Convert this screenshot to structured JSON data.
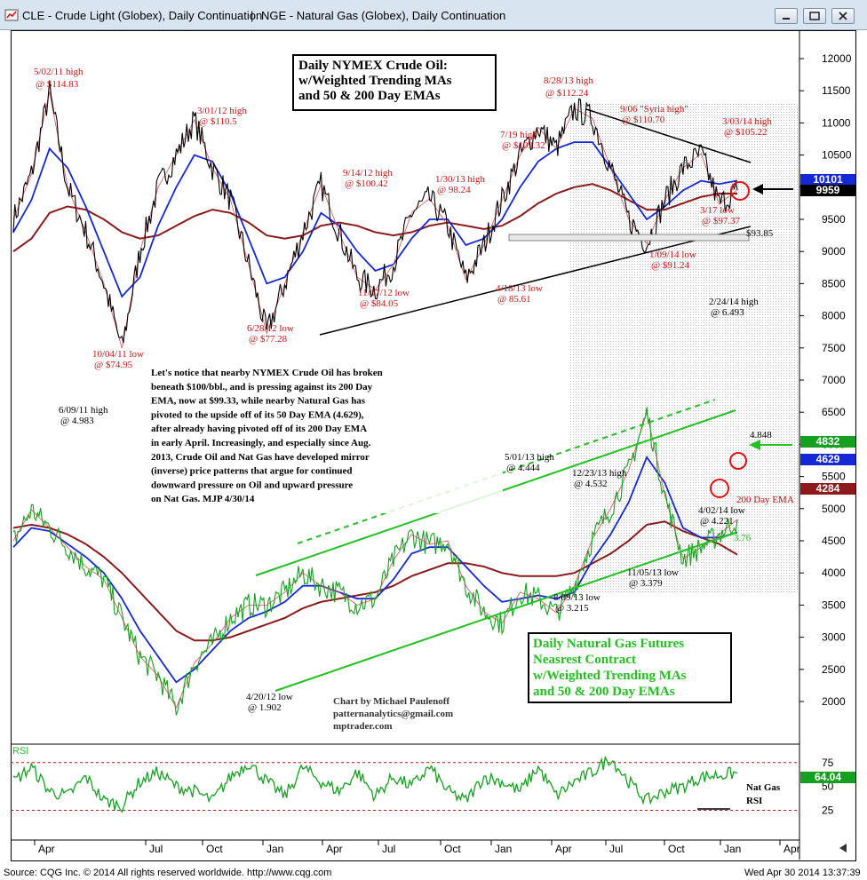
{
  "window": {
    "title_left": "CLE - Crude Light (Globex), Daily Continuation",
    "separator": "|",
    "title_right": "NGE - Natural Gas (Globex), Daily Continuation"
  },
  "status": {
    "copyright": "Source: CQG Inc. © 2014 All rights reserved worldwide.  http://www.cqg.com",
    "timestamp": "Wed Apr 30 2014 13:37:39"
  },
  "chart_data": [
    {
      "type": "line",
      "title": "Daily NYMEX Crude Oil: w/Weighted Trending MAs and 50 & 200 Day EMAs",
      "title_lines": [
        "Daily NYMEX Crude Oil:",
        "w/Weighted Trending MAs",
        "and 50 & 200 Day EMAs"
      ],
      "y_ticks": [
        "12000",
        "11500",
        "11000",
        "10500",
        "10000",
        "9500",
        "9000",
        "8500",
        "8000",
        "7500",
        "7000",
        "6500",
        "6000",
        "5500",
        "5000",
        "4500",
        "4000",
        "3500",
        "3000",
        "2500",
        "2000"
      ],
      "last_price_tags": [
        {
          "label": "10101",
          "color": "#1428d8"
        },
        {
          "label": "9959",
          "color": "#000000"
        }
      ],
      "level_label": "$93.85",
      "series": [
        {
          "name": "CLE",
          "color": "#000000",
          "values": [
            9500,
            10200,
            11483,
            10000,
            9300,
            8500,
            7495,
            9000,
            10000,
            10500,
            11050,
            10300,
            9800,
            8800,
            7728,
            8500,
            9300,
            10042,
            9300,
            8600,
            8405,
            8800,
            9600,
            9824,
            9400,
            8561,
            9100,
            9800,
            10500,
            10932,
            10600,
            11224,
            11070,
            10300,
            9500,
            9124,
            9800,
            10300,
            10522,
            9737,
            9959
          ]
        },
        {
          "name": "50 Day EMA",
          "color": "#1428d8",
          "values": [
            9300,
            9800,
            10600,
            10300,
            9700,
            9000,
            8300,
            8600,
            9400,
            10000,
            10500,
            10400,
            9900,
            9200,
            8500,
            8600,
            9000,
            9600,
            9400,
            9000,
            8700,
            8800,
            9200,
            9500,
            9500,
            9100,
            9200,
            9500,
            10000,
            10400,
            10600,
            10700,
            10700,
            10300,
            9900,
            9500,
            9700,
            9950,
            10100,
            10050,
            10101
          ]
        },
        {
          "name": "200 Day EMA",
          "color": "#8c1a1a",
          "values": [
            9000,
            9200,
            9600,
            9700,
            9650,
            9500,
            9300,
            9200,
            9250,
            9400,
            9550,
            9650,
            9600,
            9450,
            9250,
            9200,
            9250,
            9400,
            9450,
            9400,
            9300,
            9250,
            9300,
            9400,
            9450,
            9400,
            9350,
            9400,
            9550,
            9750,
            9900,
            10000,
            10050,
            9950,
            9800,
            9650,
            9650,
            9750,
            9850,
            9900,
            9900
          ]
        }
      ],
      "annotations": [
        {
          "line1": "5/02/11 high",
          "line2": "@ $114.83"
        },
        {
          "line1": "10/04/11 low",
          "line2": "@ $74.95"
        },
        {
          "line1": "3/01/12 high",
          "line2": "@ $110.5"
        },
        {
          "line1": "6/28/12 low",
          "line2": "@ $77.28"
        },
        {
          "line1": "9/14/12 high",
          "line2": "@ $100.42"
        },
        {
          "line1": "11/07/12 low",
          "line2": "@ $84.05"
        },
        {
          "line1": "1/30/13 high",
          "line2": "@ 98.24"
        },
        {
          "line1": "4/18/13 low",
          "line2": "@ 85.61"
        },
        {
          "line1": "7/19 high",
          "line2": "@ $109.32"
        },
        {
          "line1": "8/28/13 high",
          "line2": "@ $112.24"
        },
        {
          "line1": "9/06 \"Syria high\"",
          "line2": "@ $110.70"
        },
        {
          "line1": "3/03/14 high",
          "line2": "@ $105.22"
        },
        {
          "line1": "3/17 low",
          "line2": "@ $97.37"
        },
        {
          "line1": "1/09/14 low",
          "line2": "@ $91.24"
        }
      ]
    },
    {
      "type": "line",
      "title": "Daily Natural Gas Futures Neasrest Contract w/Weighted Trending MAs and 50 & 200 Day EMAs",
      "title_lines": [
        "Daily Natural Gas Futures",
        "Neasrest Contract",
        "w/Weighted Trending  MAs",
        "and 50 & 200 Day EMAs"
      ],
      "last_price_tags": [
        {
          "label": "4832",
          "color": "#15a020"
        },
        {
          "label": "4629",
          "color": "#1428d8"
        },
        {
          "label": "4284",
          "color": "#8c1a1a"
        }
      ],
      "series": [
        {
          "name": "NGE",
          "color": "#15a020",
          "values": [
            4500,
            4983,
            4700,
            4400,
            4100,
            3900,
            3300,
            2700,
            2400,
            1902,
            2600,
            2900,
            3300,
            3500,
            3500,
            3700,
            4000,
            3800,
            3700,
            3500,
            3600,
            4200,
            4600,
            4444,
            4500,
            3800,
            3400,
            3215,
            3700,
            3600,
            3379,
            3800,
            4532,
            5000,
            5600,
            6493,
            5200,
            4221,
            4400,
            4600,
            4832
          ]
        },
        {
          "name": "50 Day EMA",
          "color": "#1428d8",
          "values": [
            4400,
            4700,
            4650,
            4450,
            4250,
            4000,
            3600,
            3100,
            2700,
            2300,
            2500,
            2800,
            3100,
            3300,
            3400,
            3550,
            3800,
            3800,
            3700,
            3600,
            3600,
            3900,
            4300,
            4400,
            4400,
            4100,
            3800,
            3550,
            3600,
            3650,
            3600,
            3700,
            4200,
            4600,
            5100,
            5800,
            5400,
            4700,
            4550,
            4550,
            4629
          ]
        },
        {
          "name": "200 Day EMA",
          "color": "#8c1a1a",
          "values": [
            4700,
            4750,
            4700,
            4600,
            4450,
            4250,
            4000,
            3700,
            3400,
            3100,
            2950,
            2950,
            3000,
            3100,
            3200,
            3300,
            3450,
            3550,
            3600,
            3650,
            3700,
            3800,
            3950,
            4050,
            4150,
            4150,
            4100,
            4000,
            3950,
            3950,
            3950,
            4000,
            4150,
            4300,
            4500,
            4750,
            4800,
            4650,
            4550,
            4450,
            4284
          ]
        }
      ],
      "annotations": [
        {
          "line1": "6/09/11 high",
          "line2": "@ 4.983"
        },
        {
          "line1": "4/20/12 low",
          "line2": "@ 1.902"
        },
        {
          "line1": "5/01/13 high",
          "line2": "@ 4.444"
        },
        {
          "line1": "12/23/13 high",
          "line2": "@ 4.532"
        },
        {
          "line1": "8/09/13 low",
          "line2": "@ 3.215"
        },
        {
          "line1": "11/05/13 low",
          "line2": "@ 3.379"
        },
        {
          "line1": "2/24/14 high",
          "line2": "@ 6.493"
        },
        {
          "line1": "4/02/14 low",
          "line2": "@ 4.221"
        }
      ],
      "extra_labels": {
        "ema200": "200 Day EMA",
        "level": "3.76",
        "price": "4.848"
      }
    },
    {
      "type": "line",
      "title": "RSI",
      "y_ticks": [
        "75",
        "50",
        "25"
      ],
      "last_value_tag": "64.04",
      "side_label_lines": [
        "Nat Gas",
        "RSI"
      ],
      "x_ticks": [
        "Apr",
        "Jul",
        "Oct",
        "Jan",
        "Apr",
        "Jul",
        "Oct",
        "Jan",
        "Apr",
        "Jul",
        "Oct",
        "Jan",
        "Apr"
      ],
      "series": [
        {
          "name": "RSI",
          "color": "#15a020",
          "values": [
            55,
            70,
            45,
            40,
            60,
            35,
            30,
            55,
            65,
            50,
            45,
            35,
            60,
            75,
            55,
            40,
            70,
            55,
            45,
            65,
            40,
            60,
            50,
            70,
            45,
            35,
            60,
            55,
            45,
            70,
            40,
            55,
            65,
            80,
            55,
            35,
            45,
            50,
            60,
            62,
            64
          ]
        }
      ]
    }
  ],
  "commentary": [
    "Let's notice that nearby NYMEX Crude Oil has broken",
    "beneath $100/bbl., and is pressing against its 200 Day",
    "EMA, now at $99.33, while nearby Natural Gas has",
    "pivoted to the upside off of its 50 Day EMA (4.629),",
    "after already having pivoted off of its 200 Day EMA",
    "in early April. Increasingly, and especially since Aug.",
    "2013, Crude Oil and Nat Gas have developed mirror",
    "(inverse) price patterns that argue for continued",
    "downward pressure on Oil and upward pressure",
    "on Nat Gas. MJP  4/30/14"
  ],
  "credit": [
    "Chart by Michael Paulenoff",
    "patternanalytics@gmail.com",
    "mptrader.com"
  ],
  "colors": {
    "crude": "#000000",
    "gas": "#15a020",
    "ema50": "#1428d8",
    "ema200": "#8c1a1a",
    "annotation": "#d01010",
    "trendline_green": "#22c020"
  }
}
